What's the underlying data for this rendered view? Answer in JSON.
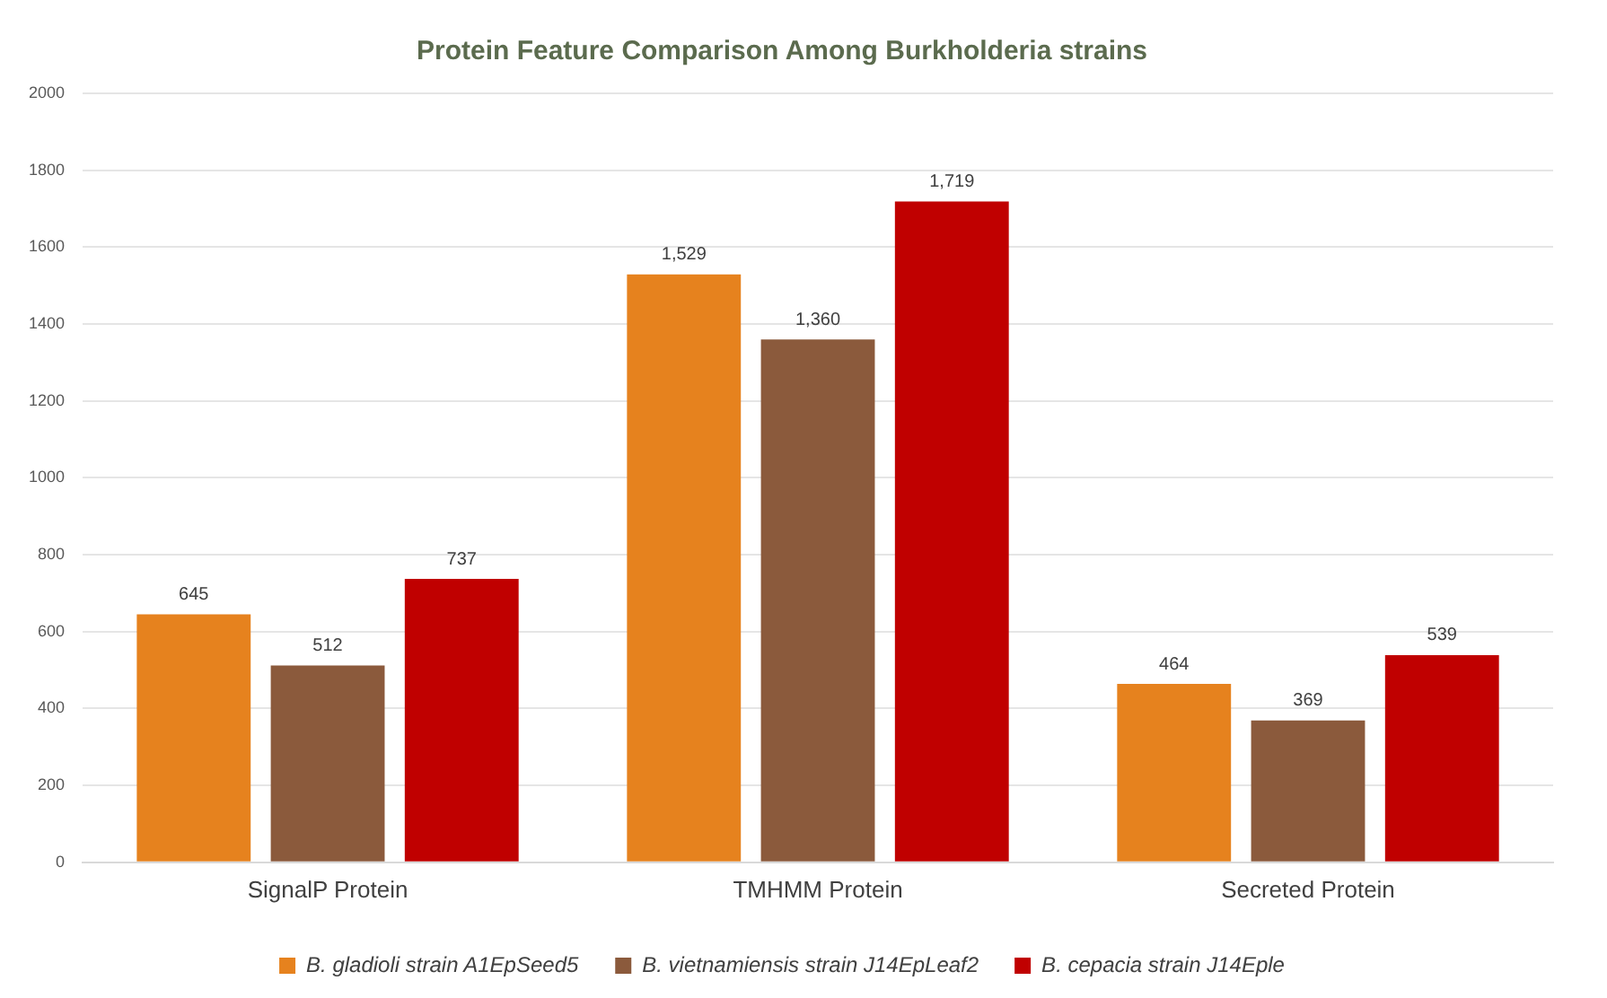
{
  "chart_data": {
    "type": "bar",
    "title": "Protein Feature Comparison Among Burkholderia strains",
    "categories": [
      "SignalP Protein",
      "TMHMM Protein",
      "Secreted Protein"
    ],
    "series": [
      {
        "name": "B. gladioli strain A1EpSeed5",
        "color": "#e6821e",
        "values": [
          645,
          1529,
          464
        ],
        "value_labels": [
          "645",
          "1,529",
          "464"
        ]
      },
      {
        "name": "B. vietnamiensis strain J14EpLeaf2",
        "color": "#8b5a3c",
        "values": [
          512,
          1360,
          369
        ],
        "value_labels": [
          "512",
          "1,360",
          "369"
        ]
      },
      {
        "name": "B. cepacia strain J14Eple",
        "color": "#c00000",
        "values": [
          737,
          1719,
          539
        ],
        "value_labels": [
          "737",
          "1,719",
          "539"
        ]
      }
    ],
    "ylim": [
      0,
      2000
    ],
    "yticks": [
      0,
      200,
      400,
      600,
      800,
      1000,
      1200,
      1400,
      1600,
      1800,
      2000
    ],
    "grid": "y",
    "legend": "bottom"
  }
}
